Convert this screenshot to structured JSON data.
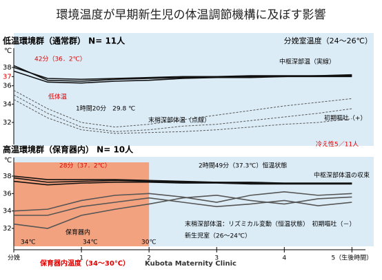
{
  "header": {
    "title": "環境温度が早期新生児の体温調節機構に及ぼす影響"
  },
  "footer": {
    "left": "保育器内温度（34～30℃）",
    "right": "Kubota Maternity Clinic"
  },
  "chart_data": [
    {
      "type": "line",
      "title": "低温環境群（通常群） N= 11人",
      "subtitle": "分娩室温度（24～26℃）",
      "ylabel": "℃",
      "x": [
        0,
        0.5,
        1,
        1.5,
        2,
        2.5,
        3,
        3.5,
        4,
        4.5,
        5
      ],
      "xlim": [
        0,
        5.2
      ],
      "ylim": [
        30.5,
        39.5
      ],
      "yticks": [
        32,
        34,
        36,
        37,
        38
      ],
      "ytick_colors": [
        "#000000",
        "#000000",
        "#000000",
        "#e00000",
        "#000000"
      ],
      "background": "#dcecf6",
      "series": [
        {
          "color": "#111111",
          "dash": false,
          "values": [
            38.2,
            36.6,
            36.5,
            36.7,
            36.8,
            36.9,
            37.0,
            37.0,
            37.0,
            37.1,
            37.1
          ]
        },
        {
          "color": "#111111",
          "dash": false,
          "values": [
            38.0,
            36.8,
            36.7,
            36.8,
            36.9,
            37.0,
            37.0,
            37.1,
            37.1,
            37.1,
            37.2
          ]
        },
        {
          "color": "#111111",
          "dash": false,
          "values": [
            37.6,
            36.4,
            36.3,
            36.5,
            36.6,
            36.8,
            36.9,
            36.9,
            37.0,
            37.0,
            37.0
          ]
        },
        {
          "color": "#555555",
          "dash": true,
          "values": [
            35.0,
            33.0,
            31.5,
            31.0,
            31.2,
            31.6,
            31.8,
            32.2,
            32.6,
            33.0,
            33.5
          ]
        },
        {
          "color": "#555555",
          "dash": true,
          "values": [
            34.5,
            32.5,
            31.2,
            30.8,
            30.9,
            31.0,
            31.2,
            31.5,
            31.8,
            32.0,
            32.4
          ]
        },
        {
          "color": "#555555",
          "dash": true,
          "values": [
            35.5,
            33.5,
            32.0,
            31.5,
            31.8,
            32.3,
            32.8,
            33.3,
            33.8,
            34.2,
            34.6
          ]
        }
      ],
      "annotations": [
        {
          "text": "42分（36．2℃）",
          "color": "#e00000"
        },
        {
          "text": "低体温",
          "color": "#e00000"
        },
        {
          "text": "1時間20分　29.8 ℃",
          "color": "#000000"
        },
        {
          "text": "末梢深部体温（点線）",
          "color": "#000000"
        },
        {
          "text": "中枢深部温（実線）",
          "color": "#000000"
        },
        {
          "text": "初期嘔吐（+）",
          "color": "#000000"
        },
        {
          "text": "冷え性5／11人",
          "color": "#e00000"
        }
      ]
    },
    {
      "type": "line",
      "title": "高温環境群（保育器内） N= 10人",
      "ylabel": "℃",
      "x": [
        0,
        0.5,
        1,
        1.5,
        2,
        2.5,
        3,
        3.5,
        4,
        4.5,
        5
      ],
      "xlim": [
        0,
        5.2
      ],
      "ylim": [
        30.5,
        39.5
      ],
      "yticks": [
        32,
        34,
        36,
        38
      ],
      "xticks": [
        {
          "value": 0,
          "label": "分娩"
        },
        1,
        2,
        3,
        4,
        {
          "value": 5,
          "label": "5（生後時間）"
        }
      ],
      "background": "#dcecf6",
      "shaded_regions": [
        {
          "xlim": [
            0,
            2
          ],
          "color": "#f3a27f"
        }
      ],
      "series": [
        {
          "color": "#111111",
          "dash": false,
          "values": [
            37.8,
            37.3,
            37.4,
            37.5,
            37.4,
            37.3,
            37.3,
            37.2,
            37.2,
            37.2,
            37.2
          ]
        },
        {
          "color": "#111111",
          "dash": false,
          "values": [
            37.4,
            37.0,
            37.2,
            37.3,
            37.3,
            37.2,
            37.2,
            37.1,
            37.1,
            37.1,
            37.1
          ]
        },
        {
          "color": "#111111",
          "dash": false,
          "values": [
            38.0,
            37.6,
            37.6,
            37.6,
            37.5,
            37.4,
            37.3,
            37.3,
            37.2,
            37.2,
            37.2
          ]
        },
        {
          "color": "#555555",
          "dash": false,
          "values": [
            33.5,
            33.5,
            34.5,
            35.0,
            35.5,
            35.0,
            34.5,
            34.8,
            35.2,
            34.6,
            35.0
          ]
        },
        {
          "color": "#555555",
          "dash": false,
          "values": [
            32.5,
            32.0,
            33.5,
            34.2,
            34.8,
            35.5,
            35.8,
            35.2,
            34.8,
            35.4,
            35.6
          ]
        },
        {
          "color": "#555555",
          "dash": false,
          "values": [
            34.0,
            34.2,
            35.2,
            35.8,
            36.0,
            35.6,
            35.0,
            35.8,
            36.2,
            35.8,
            36.0
          ]
        }
      ],
      "annotations": [
        {
          "text": "28分（37．2℃）",
          "color": "#e00000"
        },
        {
          "text": "2時間49分（37.3℃）恒温状態",
          "color": "#000000"
        },
        {
          "text": "中枢深部体温の収束",
          "color": "#000000"
        },
        {
          "text": "末梢深部体温：リズミカル変動（恒温状態）　初期嘔吐（－）",
          "color": "#000000"
        },
        {
          "text": "新生児室（26～24℃）",
          "color": "#000000"
        },
        {
          "text": "保育器内",
          "color": "#000000"
        },
        {
          "text": "34℃",
          "color": "#000000"
        },
        {
          "text": "34℃",
          "color": "#000000"
        },
        {
          "text": "30℃",
          "color": "#000000"
        }
      ]
    }
  ]
}
